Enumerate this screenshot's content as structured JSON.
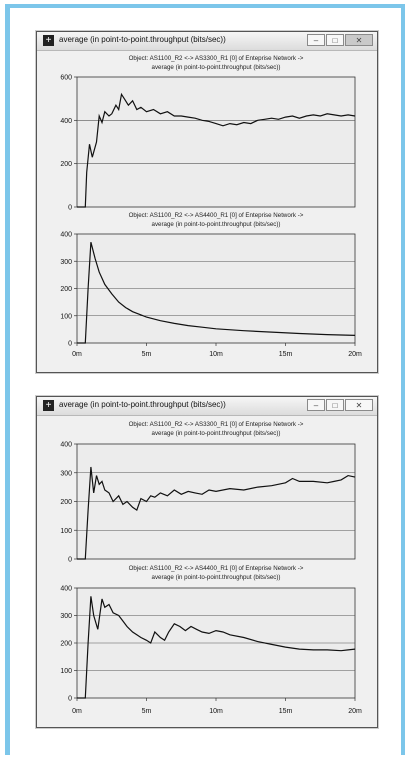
{
  "windows": [
    {
      "title": "average (in point-to-point.throughput (bits/sec))",
      "controls": {
        "minimize": "–",
        "maximize": "□",
        "close": "✕"
      },
      "panels": [
        {
          "header_line1": "Object: AS1100_R2 <-> AS3300_R1 [0] of Enteprise Network ->",
          "header_line2": "average (in point-to-point.throughput (bits/sec))",
          "y_ticks": [
            "600",
            "400",
            "200",
            "0"
          ]
        },
        {
          "header_line1": "Object: AS1100_R2 <-> AS4400_R1 [0] of Enteprise Network ->",
          "header_line2": "average (in point-to-point.throughput (bits/sec))",
          "y_ticks": [
            "400",
            "300",
            "200",
            "100",
            "0"
          ]
        }
      ],
      "x_ticks": [
        "0m",
        "5m",
        "10m",
        "15m",
        "20m"
      ]
    },
    {
      "title": "average (in point-to-point.throughput (bits/sec))",
      "controls": {
        "minimize": "–",
        "maximize": "□",
        "close": "✕"
      },
      "panels": [
        {
          "header_line1": "Object: AS1100_R2 <-> AS3300_R1 [0] of Enteprise Network ->",
          "header_line2": "average (in point-to-point.throughput (bits/sec))",
          "y_ticks": [
            "400",
            "300",
            "200",
            "100",
            "0"
          ]
        },
        {
          "header_line1": "Object: AS1100_R2 <-> AS4400_R1 [0] of Enteprise Network ->",
          "header_line2": "average (in point-to-point.throughput (bits/sec))",
          "y_ticks": [
            "400",
            "300",
            "200",
            "100",
            "0"
          ]
        }
      ],
      "x_ticks": [
        "0m",
        "5m",
        "10m",
        "15m",
        "20m"
      ]
    }
  ],
  "chart_data": [
    {
      "type": "line",
      "title": "Object: AS1100_R2 <-> AS3300_R1 [0] of Enteprise Network -> average (in point-to-point.throughput (bits/sec))",
      "ylim": [
        0,
        600
      ],
      "xlim": [
        0,
        20
      ],
      "x_unit": "m",
      "series": [
        {
          "x": [
            0,
            0.6,
            0.7,
            0.9,
            1.1,
            1.4,
            1.6,
            1.8,
            2.0,
            2.3,
            2.5,
            2.8,
            3.0,
            3.2,
            3.4,
            3.7,
            4.0,
            4.3,
            4.6,
            5.0,
            5.5,
            6.0,
            6.5,
            7.0,
            7.5,
            8.0,
            8.5,
            9.0,
            9.5,
            10.0,
            10.5,
            11.0,
            11.5,
            12.0,
            12.5,
            13.0,
            13.5,
            14.0,
            14.5,
            15.0,
            15.5,
            16.0,
            16.5,
            17.0,
            17.5,
            18.0,
            18.5,
            19.0,
            19.5,
            20.0
          ],
          "y": [
            0,
            0,
            160,
            290,
            230,
            300,
            420,
            390,
            440,
            420,
            430,
            470,
            450,
            520,
            500,
            470,
            490,
            450,
            460,
            440,
            450,
            430,
            440,
            420,
            420,
            415,
            410,
            400,
            395,
            385,
            375,
            385,
            380,
            390,
            385,
            400,
            405,
            410,
            405,
            415,
            420,
            410,
            420,
            425,
            420,
            430,
            425,
            420,
            425,
            420
          ]
        }
      ]
    },
    {
      "type": "line",
      "title": "Object: AS1100_R2 <-> AS4400_R1 [0] of Enteprise Network -> average (in point-to-point.throughput (bits/sec))",
      "ylim": [
        0,
        400
      ],
      "xlim": [
        0,
        20
      ],
      "x_unit": "m",
      "series": [
        {
          "x": [
            0,
            0.6,
            0.8,
            1.0,
            1.3,
            1.6,
            2.0,
            2.5,
            3.0,
            3.5,
            4.0,
            5.0,
            6.0,
            7.0,
            8.0,
            9.0,
            10.0,
            12.0,
            14.0,
            16.0,
            18.0,
            20.0
          ],
          "y": [
            0,
            0,
            200,
            370,
            310,
            260,
            215,
            180,
            150,
            130,
            115,
            95,
            82,
            72,
            64,
            58,
            52,
            45,
            40,
            35,
            31,
            28
          ]
        }
      ]
    },
    {
      "type": "line",
      "title": "Object: AS1100_R2 <-> AS3300_R1 [0] of Enteprise Network -> average (in point-to-point.throughput (bits/sec))",
      "ylim": [
        0,
        400
      ],
      "xlim": [
        0,
        20
      ],
      "x_unit": "m",
      "series": [
        {
          "x": [
            0,
            0.6,
            0.8,
            1.0,
            1.2,
            1.4,
            1.6,
            1.8,
            2.0,
            2.3,
            2.6,
            3.0,
            3.3,
            3.6,
            4.0,
            4.3,
            4.6,
            5.0,
            5.3,
            5.6,
            6.0,
            6.5,
            7.0,
            7.5,
            8.0,
            8.5,
            9.0,
            9.5,
            10.0,
            11.0,
            12.0,
            13.0,
            14.0,
            15.0,
            15.5,
            16.0,
            17.0,
            18.0,
            18.5,
            19.0,
            19.5,
            20.0
          ],
          "y": [
            0,
            0,
            170,
            320,
            230,
            290,
            260,
            270,
            240,
            230,
            200,
            220,
            190,
            200,
            180,
            170,
            210,
            200,
            220,
            215,
            230,
            220,
            240,
            225,
            235,
            230,
            225,
            240,
            235,
            245,
            240,
            250,
            255,
            265,
            280,
            270,
            270,
            265,
            270,
            275,
            290,
            285
          ]
        }
      ]
    },
    {
      "type": "line",
      "title": "Object: AS1100_R2 <-> AS4400_R1 [0] of Enteprise Network -> average (in point-to-point.throughput (bits/sec))",
      "ylim": [
        0,
        400
      ],
      "xlim": [
        0,
        20
      ],
      "x_unit": "m",
      "series": [
        {
          "x": [
            0,
            0.6,
            0.8,
            1.0,
            1.2,
            1.5,
            1.8,
            2.0,
            2.3,
            2.6,
            3.0,
            3.3,
            3.6,
            4.0,
            4.3,
            4.6,
            5.0,
            5.3,
            5.6,
            6.0,
            6.3,
            6.6,
            7.0,
            7.4,
            7.8,
            8.2,
            8.6,
            9.0,
            9.5,
            10.0,
            10.5,
            11.0,
            12.0,
            13.0,
            14.0,
            15.0,
            16.0,
            17.0,
            18.0,
            19.0,
            19.5,
            20.0
          ],
          "y": [
            0,
            0,
            200,
            370,
            300,
            250,
            360,
            330,
            340,
            310,
            300,
            280,
            260,
            240,
            230,
            220,
            210,
            200,
            240,
            220,
            210,
            240,
            270,
            260,
            245,
            260,
            250,
            240,
            235,
            245,
            240,
            230,
            220,
            205,
            195,
            185,
            178,
            175,
            175,
            172,
            175,
            178
          ]
        }
      ]
    }
  ]
}
